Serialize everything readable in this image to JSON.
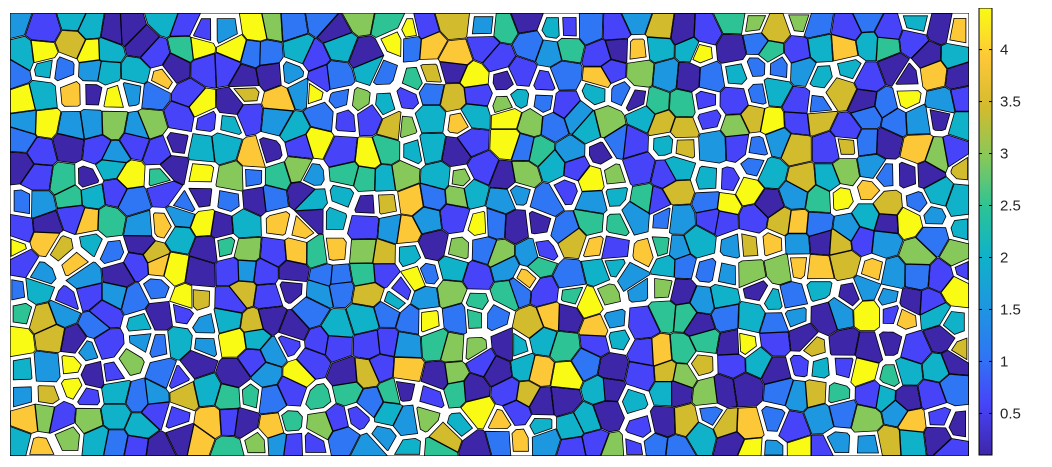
{
  "figure": {
    "map_type": "grain orientation map",
    "background_color": "#ffffff",
    "grain_outline_color": "#000000"
  },
  "colorbar": {
    "colormap": "parula",
    "range": [
      0.1,
      4.4
    ],
    "ticks": [
      {
        "value": 0.5,
        "label": "0.5"
      },
      {
        "value": 1,
        "label": "1"
      },
      {
        "value": 1.5,
        "label": "1.5"
      },
      {
        "value": 2,
        "label": "2"
      },
      {
        "value": 2.5,
        "label": "2.5"
      },
      {
        "value": 3,
        "label": "3"
      },
      {
        "value": 3.5,
        "label": "3.5"
      },
      {
        "value": 4,
        "label": "4"
      }
    ],
    "color_stops": [
      "#3e26a8",
      "#4743f8",
      "#2f76f4",
      "#1d97df",
      "#0fb2c9",
      "#2dc395",
      "#87c85a",
      "#d3bb2e",
      "#fdc838",
      "#f9fb14"
    ]
  }
}
